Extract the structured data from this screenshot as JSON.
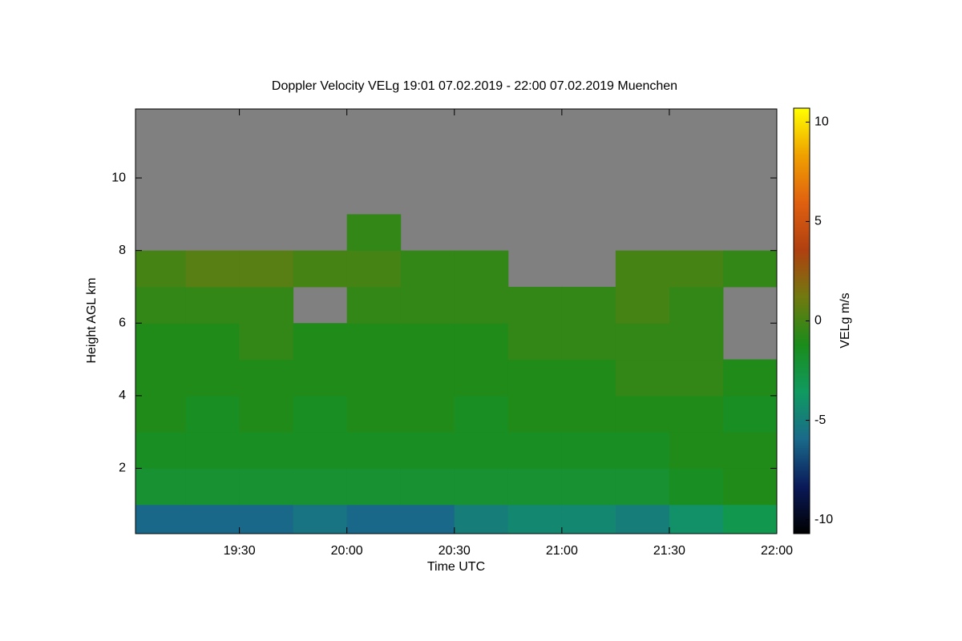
{
  "chart_data": {
    "type": "heatmap",
    "title": "Doppler Velocity VELg   19:01 07.02.2019 - 22:00 07.02.2019 Muenchen",
    "x_label": "Time UTC",
    "y_label": "Height AGL km",
    "colorbar_label": "VELg m/s",
    "x_edges": [
      19.0167,
      19.25,
      19.5,
      19.75,
      20.0,
      20.25,
      20.5,
      20.75,
      21.0,
      21.25,
      21.5,
      21.75,
      22.0
    ],
    "y_edges": [
      0.2,
      1,
      2,
      3,
      4,
      5,
      6,
      7,
      8,
      9,
      10,
      11,
      11.9
    ],
    "values": [
      [
        -6,
        -6,
        -6,
        -5.5,
        -6,
        -6,
        -5,
        -4.5,
        -4.5,
        -5,
        -4,
        -3
      ],
      [
        -2,
        -2,
        -2,
        -2,
        -2,
        -2,
        -2,
        -2,
        -2,
        -2,
        -1.5,
        -1
      ],
      [
        -1.5,
        -1.5,
        -1.5,
        -1.5,
        -1.5,
        -1.5,
        -1.5,
        -1.5,
        -1.5,
        -1.5,
        -1,
        -1
      ],
      [
        -1,
        -1.5,
        -1,
        -1.5,
        -1,
        -1,
        -1.5,
        -1,
        -1,
        -1,
        -1,
        -1.5
      ],
      [
        -1,
        -1,
        -1,
        -1,
        -1,
        -1,
        -1,
        -1,
        -1,
        -0.5,
        -0.5,
        -1
      ],
      [
        -1,
        -1,
        -0.5,
        -1,
        -1,
        -1,
        -1,
        -0.5,
        -0.5,
        -0.5,
        -0.5,
        null
      ],
      [
        -0.5,
        -0.5,
        -0.5,
        null,
        -0.5,
        -0.5,
        -0.5,
        -0.5,
        -0.5,
        0,
        -0.5,
        null
      ],
      [
        0,
        0.5,
        0.5,
        0,
        0,
        -0.5,
        -0.5,
        null,
        null,
        0,
        0,
        -0.5
      ],
      [
        null,
        null,
        null,
        null,
        -0.5,
        null,
        null,
        null,
        null,
        null,
        null,
        null
      ],
      [
        null,
        null,
        null,
        null,
        null,
        null,
        null,
        null,
        null,
        null,
        null,
        null
      ],
      [
        null,
        null,
        null,
        null,
        null,
        null,
        null,
        null,
        null,
        null,
        null,
        null
      ],
      [
        null,
        null,
        null,
        null,
        null,
        null,
        null,
        null,
        null,
        null,
        null,
        null
      ]
    ],
    "xlim": [
      19.0167,
      22.0
    ],
    "xticks": [
      {
        "value": 19.5,
        "label": "19:30"
      },
      {
        "value": 20.0,
        "label": "20:00"
      },
      {
        "value": 20.5,
        "label": "20:30"
      },
      {
        "value": 21.0,
        "label": "21:00"
      },
      {
        "value": 21.5,
        "label": "21:30"
      },
      {
        "value": 22.0,
        "label": "22:00"
      }
    ],
    "ylim": [
      0.2,
      11.9
    ],
    "yticks": [
      2,
      4,
      6,
      8,
      10
    ],
    "clim": [
      -10.7,
      10.7
    ],
    "cticks": [
      -10,
      -5,
      0,
      5,
      10
    ],
    "colors": [
      "#000000",
      "#0a1a5a",
      "#1a6a8a",
      "#109a60",
      "#1a8c1a",
      "#707a10",
      "#b04010",
      "#e06010",
      "#f0a000",
      "#ffff00"
    ],
    "nan_color": "#808080"
  }
}
